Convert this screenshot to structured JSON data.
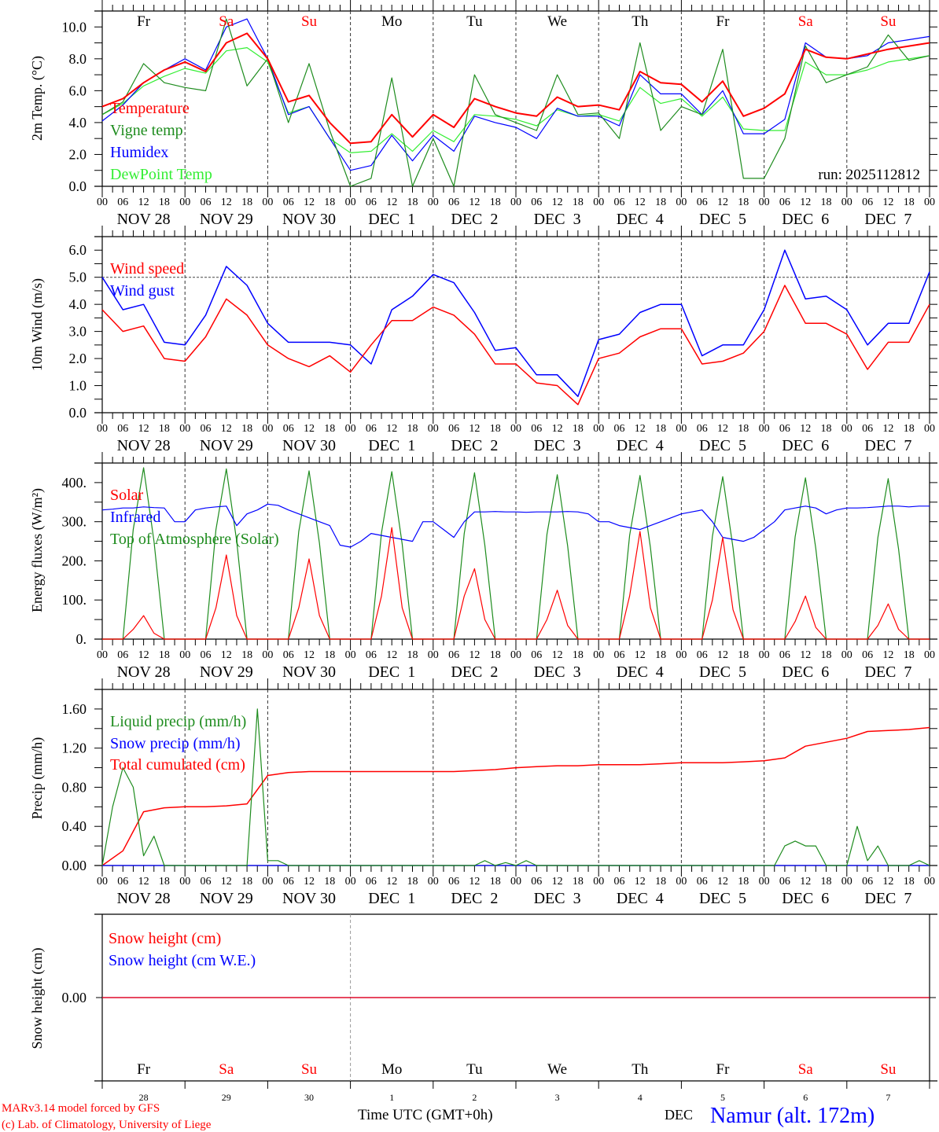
{
  "x_axis": {
    "hour_labels": [
      "00",
      "06",
      "12",
      "18"
    ],
    "final_hour_label": "00",
    "dates": [
      "NOV 28",
      "NOV 29",
      "NOV 30",
      "DEC  1",
      "DEC  2",
      "DEC  3",
      "DEC  4",
      "DEC  5",
      "DEC  6",
      "DEC  7"
    ],
    "weekdays": [
      "Fr",
      "Sa",
      "Su",
      "Mo",
      "Tu",
      "We",
      "Th",
      "Fr",
      "Sa",
      "Su"
    ],
    "weekend": [
      false,
      true,
      true,
      false,
      false,
      false,
      false,
      false,
      true,
      true
    ],
    "day_numbers": [
      "28",
      "29",
      "30",
      "1",
      "2",
      "3",
      "4",
      "5",
      "6",
      "7"
    ],
    "xlabel": "Time UTC (GMT+0h)",
    "month_label": "DEC"
  },
  "colors": {
    "red": "#ff0000",
    "blue": "#0000ff",
    "darkgreen": "#1e8c1e",
    "lightgreen": "#33ee33",
    "weekday": "#000000"
  },
  "footer": {
    "model": "MARv3.14 model forced by GFS",
    "credit": "(c) Lab. of Climatology, University of Liege",
    "location": "Namur (alt. 172m)"
  },
  "chart_data": [
    {
      "type": "line",
      "title": "",
      "ylabel": "2m Temp. (°C)",
      "ylim": [
        0,
        11
      ],
      "yticks": [
        0,
        2,
        4,
        6,
        8,
        10
      ],
      "ytick_labels": [
        "0.0",
        "2.0",
        "4.0",
        "6.0",
        "8.0",
        "10.0"
      ],
      "x_step_hours": 6,
      "annotation": "run: 2025112812",
      "series": [
        {
          "name": "Temperature",
          "color": "#ff0000",
          "values": [
            5.0,
            5.5,
            6.5,
            7.3,
            7.8,
            7.2,
            9.0,
            9.6,
            8.0,
            5.3,
            5.7,
            4.0,
            2.7,
            2.8,
            4.5,
            3.1,
            4.5,
            3.7,
            5.5,
            5.0,
            4.6,
            4.4,
            5.6,
            5.0,
            5.1,
            4.8,
            7.2,
            6.5,
            6.4,
            5.3,
            6.6,
            4.4,
            4.9,
            5.8,
            8.6,
            8.1,
            8.0,
            8.3,
            8.6,
            8.8,
            9.0
          ]
        },
        {
          "name": "Vigne temp",
          "color": "#1e8c1e",
          "values": [
            4.5,
            5.3,
            7.7,
            6.5,
            6.2,
            6.0,
            10.5,
            6.3,
            8.0,
            4.0,
            7.7,
            3.5,
            0.0,
            0.5,
            6.8,
            0.0,
            3.0,
            0.0,
            7.0,
            4.5,
            4.0,
            3.5,
            7.0,
            4.5,
            4.6,
            3.0,
            9.0,
            3.5,
            5.0,
            4.5,
            8.6,
            0.5,
            0.5,
            3.0,
            8.8,
            6.5,
            7.0,
            7.5,
            9.5,
            7.9,
            8.2
          ]
        },
        {
          "name": "Humidex",
          "color": "#0000ff",
          "values": [
            4.1,
            5.1,
            6.5,
            7.3,
            8.0,
            7.3,
            10.0,
            10.5,
            8.0,
            4.5,
            5.0,
            3.0,
            1.0,
            1.3,
            3.2,
            1.6,
            3.2,
            2.2,
            4.4,
            4.0,
            3.7,
            3.0,
            4.9,
            4.4,
            4.4,
            3.8,
            7.0,
            5.8,
            5.8,
            4.5,
            6.0,
            3.3,
            3.3,
            4.2,
            9.0,
            8.1,
            8.0,
            8.2,
            9.0,
            9.2,
            9.4
          ]
        },
        {
          "name": "DewPoint Temp",
          "color": "#33ee33",
          "values": [
            4.5,
            5.2,
            6.3,
            6.9,
            7.4,
            7.1,
            8.5,
            8.7,
            7.8,
            4.6,
            5.0,
            3.0,
            2.1,
            2.2,
            3.3,
            2.2,
            3.5,
            2.8,
            4.5,
            4.4,
            4.2,
            3.8,
            4.8,
            4.4,
            4.5,
            4.1,
            6.2,
            5.2,
            5.5,
            4.4,
            5.6,
            3.6,
            3.5,
            3.5,
            7.8,
            7.0,
            7.0,
            7.3,
            7.8,
            8.0,
            8.2
          ]
        }
      ]
    },
    {
      "type": "line",
      "ylabel": "10m Wind (m/s)",
      "ylim": [
        0,
        6.5
      ],
      "yticks": [
        0,
        1,
        2,
        3,
        4,
        5,
        6
      ],
      "ytick_labels": [
        "0.0",
        "1.0",
        "2.0",
        "3.0",
        "4.0",
        "5.0",
        "6.0"
      ],
      "reference_line": 5.0,
      "x_step_hours": 6,
      "series": [
        {
          "name": "Wind speed",
          "color": "#ff0000",
          "values": [
            3.8,
            3.0,
            3.2,
            2.0,
            1.9,
            2.8,
            4.2,
            3.6,
            2.5,
            2.0,
            1.7,
            2.1,
            1.5,
            2.5,
            3.4,
            3.4,
            3.9,
            3.6,
            2.9,
            1.8,
            1.8,
            1.1,
            1.0,
            0.3,
            2.0,
            2.2,
            2.8,
            3.1,
            3.1,
            1.8,
            1.9,
            2.2,
            3.0,
            4.7,
            3.3,
            3.3,
            2.9,
            1.6,
            2.6,
            2.6,
            4.0
          ]
        },
        {
          "name": "Wind gust",
          "color": "#0000ff",
          "values": [
            5.0,
            3.8,
            4.0,
            2.6,
            2.5,
            3.6,
            5.4,
            4.7,
            3.3,
            2.6,
            2.6,
            2.6,
            2.5,
            1.8,
            3.8,
            4.3,
            5.1,
            4.8,
            3.7,
            2.3,
            2.4,
            1.4,
            1.4,
            0.6,
            2.7,
            2.9,
            3.7,
            4.0,
            4.0,
            2.1,
            2.5,
            2.5,
            3.8,
            6.0,
            4.2,
            4.3,
            3.8,
            2.5,
            3.3,
            3.3,
            5.2
          ]
        }
      ]
    },
    {
      "type": "line",
      "ylabel": "Energy fluxes (W/m²)",
      "ylim": [
        0,
        450
      ],
      "yticks": [
        0,
        100,
        200,
        300,
        400
      ],
      "ytick_labels": [
        "0.",
        "100.",
        "200.",
        "300.",
        "400."
      ],
      "x_step_hours": 3,
      "series": [
        {
          "name": "Solar",
          "color": "#ff0000",
          "values": [
            0,
            0,
            0,
            25,
            60,
            15,
            0,
            0,
            0,
            0,
            0,
            80,
            215,
            60,
            0,
            0,
            0,
            0,
            0,
            80,
            205,
            60,
            0,
            0,
            0,
            0,
            0,
            110,
            285,
            80,
            0,
            0,
            0,
            0,
            0,
            110,
            180,
            50,
            0,
            0,
            0,
            0,
            0,
            50,
            125,
            35,
            0,
            0,
            0,
            0,
            0,
            110,
            275,
            80,
            0,
            0,
            0,
            0,
            0,
            100,
            260,
            75,
            0,
            0,
            0,
            0,
            0,
            45,
            110,
            30,
            0,
            0,
            0,
            0,
            0,
            35,
            90,
            25,
            0,
            0,
            0
          ]
        },
        {
          "name": "Infrared",
          "color": "#0000ff",
          "values": [
            330,
            332,
            335,
            335,
            338,
            336,
            335,
            300,
            300,
            330,
            335,
            338,
            340,
            290,
            320,
            330,
            345,
            342,
            330,
            320,
            310,
            300,
            290,
            240,
            235,
            250,
            270,
            265,
            260,
            255,
            250,
            300,
            300,
            280,
            260,
            300,
            325,
            325,
            326,
            325,
            325,
            324,
            325,
            325,
            325,
            326,
            325,
            320,
            300,
            300,
            290,
            285,
            280,
            290,
            300,
            310,
            320,
            325,
            330,
            300,
            260,
            255,
            250,
            260,
            280,
            300,
            330,
            335,
            340,
            335,
            320,
            330,
            335,
            335,
            336,
            338,
            340,
            340,
            338,
            340,
            340
          ]
        },
        {
          "name": "Top of Atmosphere (Solar)",
          "color": "#1e8c1e",
          "values": [
            0,
            0,
            0,
            280,
            438,
            250,
            0,
            0,
            0,
            0,
            0,
            280,
            435,
            250,
            0,
            0,
            0,
            0,
            0,
            275,
            430,
            245,
            0,
            0,
            0,
            0,
            0,
            272,
            428,
            243,
            0,
            0,
            0,
            0,
            0,
            270,
            425,
            240,
            0,
            0,
            0,
            0,
            0,
            268,
            420,
            238,
            0,
            0,
            0,
            0,
            0,
            265,
            418,
            235,
            0,
            0,
            0,
            0,
            0,
            263,
            415,
            233,
            0,
            0,
            0,
            0,
            0,
            262,
            412,
            232,
            0,
            0,
            0,
            0,
            0,
            260,
            410,
            230,
            0,
            0,
            0
          ]
        }
      ]
    },
    {
      "type": "line",
      "ylabel": "Precip (mm/h)",
      "ylim": [
        0,
        1.8
      ],
      "yticks": [
        0,
        0.4,
        0.8,
        1.2,
        1.6
      ],
      "ytick_labels": [
        "0.00",
        "0.40",
        "0.80",
        "1.20",
        "1.60"
      ],
      "series": [
        {
          "name": "Liquid precip (mm/h)",
          "color": "#1e8c1e",
          "x_step_hours": 3,
          "values": [
            0,
            0.6,
            1.0,
            0.8,
            0.1,
            0.3,
            0,
            0,
            0,
            0,
            0,
            0,
            0,
            0,
            0,
            1.6,
            0.05,
            0.05,
            0,
            0,
            0,
            0,
            0,
            0,
            0,
            0,
            0,
            0,
            0,
            0,
            0,
            0,
            0,
            0,
            0,
            0,
            0,
            0.05,
            0,
            0.03,
            0,
            0.05,
            0,
            0,
            0,
            0,
            0,
            0,
            0,
            0,
            0,
            0,
            0,
            0,
            0,
            0,
            0,
            0,
            0,
            0,
            0,
            0,
            0,
            0,
            0,
            0,
            0.2,
            0.25,
            0.2,
            0.2,
            0,
            0,
            0,
            0.4,
            0.05,
            0.2,
            0,
            0,
            0,
            0.05,
            0
          ]
        },
        {
          "name": "Snow precip (mm/h)",
          "color": "#0000ff",
          "x_step_hours": 3,
          "values": [
            0,
            0,
            0,
            0,
            0,
            0,
            0,
            0,
            0,
            0,
            0,
            0,
            0,
            0,
            0,
            0,
            0,
            0,
            0,
            0,
            0,
            0,
            0,
            0,
            0,
            0,
            0,
            0,
            0,
            0,
            0,
            0,
            0,
            0,
            0,
            0,
            0,
            0,
            0,
            0,
            0,
            0,
            0,
            0,
            0,
            0,
            0,
            0,
            0,
            0,
            0,
            0,
            0,
            0,
            0,
            0,
            0,
            0,
            0,
            0,
            0,
            0,
            0,
            0,
            0,
            0,
            0,
            0,
            0,
            0,
            0,
            0,
            0,
            0,
            0,
            0,
            0,
            0,
            0,
            0,
            0
          ]
        },
        {
          "name": "Total cumulated (cm)",
          "color": "#ff0000",
          "x_step_hours": 6,
          "values": [
            0,
            0.15,
            0.55,
            0.59,
            0.6,
            0.6,
            0.61,
            0.63,
            0.92,
            0.95,
            0.96,
            0.96,
            0.96,
            0.96,
            0.96,
            0.96,
            0.96,
            0.96,
            0.97,
            0.98,
            1.0,
            1.01,
            1.02,
            1.02,
            1.03,
            1.03,
            1.03,
            1.04,
            1.05,
            1.05,
            1.05,
            1.06,
            1.07,
            1.1,
            1.22,
            1.26,
            1.3,
            1.37,
            1.38,
            1.39,
            1.41
          ]
        }
      ]
    },
    {
      "type": "line",
      "ylabel": "Snow height (cm)",
      "ylim": [
        -1,
        1
      ],
      "yticks": [
        0
      ],
      "ytick_labels": [
        "0.00"
      ],
      "x_step_hours": 240,
      "series": [
        {
          "name": "Snow height (cm)",
          "color": "#ff0000",
          "values": [
            0,
            0
          ]
        },
        {
          "name": "Snow height (cm W.E.)",
          "color": "#0000ff",
          "values": [
            0,
            0
          ]
        }
      ]
    }
  ]
}
